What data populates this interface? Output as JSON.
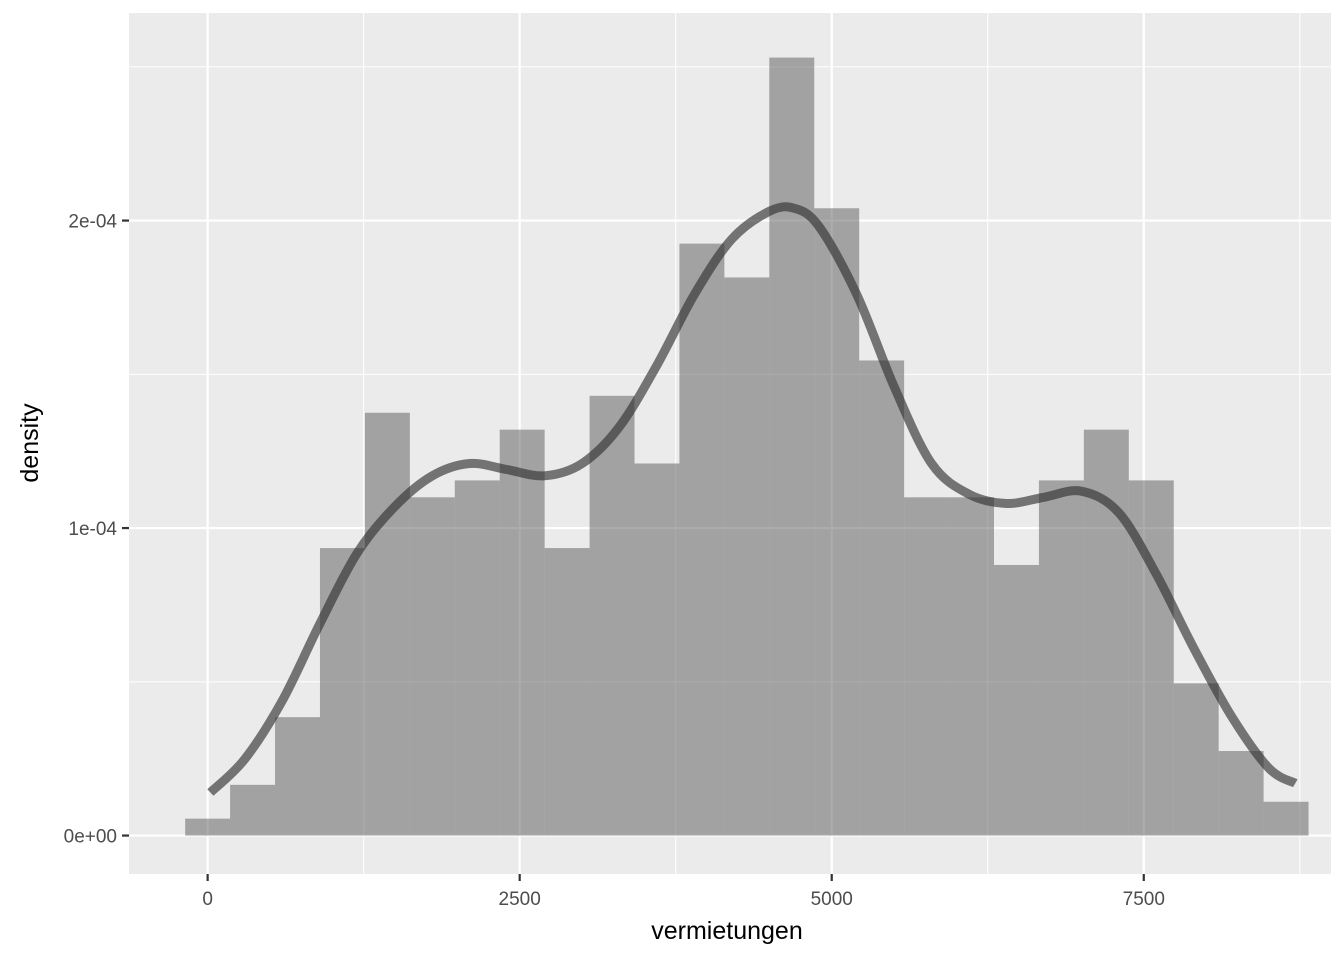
{
  "chart_data": {
    "type": "bar",
    "subtype": "histogram-with-density",
    "xlabel": "vermietungen",
    "ylabel": "density",
    "xlim": [
      -630,
      9000
    ],
    "ylim": [
      -1.25e-05,
      0.0002675
    ],
    "x_ticks": [
      {
        "value": 0,
        "label": "0"
      },
      {
        "value": 2500,
        "label": "2500"
      },
      {
        "value": 5000,
        "label": "5000"
      },
      {
        "value": 7500,
        "label": "7500"
      }
    ],
    "y_ticks": [
      {
        "value": 0,
        "label": "0e+00"
      },
      {
        "value": 0.0001,
        "label": "1e-04"
      },
      {
        "value": 0.0002,
        "label": "2e-04"
      }
    ],
    "grid": true,
    "bins": [
      {
        "x0": -180,
        "x1": 180,
        "density": 5.5e-06
      },
      {
        "x0": 180,
        "x1": 540,
        "density": 1.65e-05
      },
      {
        "x0": 540,
        "x1": 900,
        "density": 3.85e-05
      },
      {
        "x0": 900,
        "x1": 1260,
        "density": 9.35e-05
      },
      {
        "x0": 1260,
        "x1": 1620,
        "density": 0.0001375
      },
      {
        "x0": 1620,
        "x1": 1980,
        "density": 0.00011
      },
      {
        "x0": 1980,
        "x1": 2340,
        "density": 0.0001155
      },
      {
        "x0": 2340,
        "x1": 2700,
        "density": 0.000132
      },
      {
        "x0": 2700,
        "x1": 3060,
        "density": 9.35e-05
      },
      {
        "x0": 3060,
        "x1": 3420,
        "density": 0.000143
      },
      {
        "x0": 3420,
        "x1": 3780,
        "density": 0.000121
      },
      {
        "x0": 3780,
        "x1": 4140,
        "density": 0.0001925
      },
      {
        "x0": 4140,
        "x1": 4500,
        "density": 0.0001815
      },
      {
        "x0": 4500,
        "x1": 4860,
        "density": 0.000253
      },
      {
        "x0": 4860,
        "x1": 5220,
        "density": 0.000204
      },
      {
        "x0": 5220,
        "x1": 5580,
        "density": 0.0001545
      },
      {
        "x0": 5580,
        "x1": 5940,
        "density": 0.00011
      },
      {
        "x0": 5940,
        "x1": 6300,
        "density": 0.00011
      },
      {
        "x0": 6300,
        "x1": 6660,
        "density": 8.8e-05
      },
      {
        "x0": 6660,
        "x1": 7020,
        "density": 0.0001155
      },
      {
        "x0": 7020,
        "x1": 7380,
        "density": 0.000132
      },
      {
        "x0": 7380,
        "x1": 7740,
        "density": 0.0001155
      },
      {
        "x0": 7740,
        "x1": 8100,
        "density": 4.95e-05
      },
      {
        "x0": 8100,
        "x1": 8460,
        "density": 2.75e-05
      },
      {
        "x0": 8460,
        "x1": 8820,
        "density": 1.1e-05
      }
    ],
    "density_curve": {
      "x": [
        22,
        300,
        600,
        900,
        1200,
        1500,
        1800,
        2100,
        2400,
        2700,
        3000,
        3300,
        3600,
        3900,
        4200,
        4500,
        4700,
        4900,
        5200,
        5500,
        5800,
        6100,
        6400,
        6700,
        7000,
        7300,
        7600,
        7900,
        8200,
        8500,
        8714
      ],
      "y": [
        1.4e-05,
        2.5e-05,
        4.4e-05,
        6.9e-05,
        9.2e-05,
        0.000107,
        0.000117,
        0.000121,
        0.000119,
        0.000117,
        0.000121,
        0.000133,
        0.000153,
        0.000176,
        0.000194,
        0.000203,
        0.000204,
        0.000198,
        0.000176,
        0.000146,
        0.000121,
        0.000111,
        0.000108,
        0.00011,
        0.000112,
        0.000105,
        8.5e-05,
        6.1e-05,
        3.9e-05,
        2.2e-05,
        1.7e-05
      ]
    },
    "colors": {
      "panel": "#ebebeb",
      "grid": "#ffffff",
      "bars": "#595959",
      "curve": "#333333"
    }
  }
}
